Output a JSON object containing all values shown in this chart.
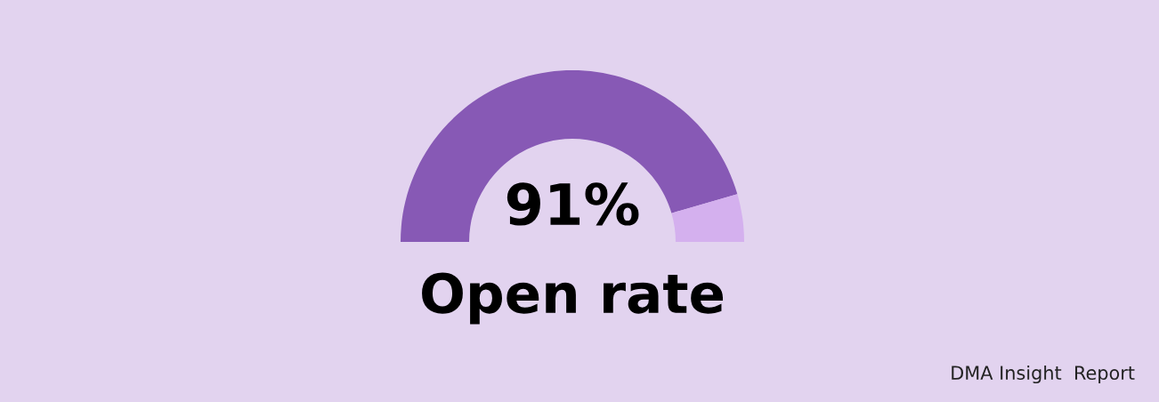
{
  "chart_data": {
    "type": "donut",
    "categories": [
      null,
      null
    ],
    "values": [
      91,
      9
    ],
    "colors": [
      "#8759b5",
      "#d4b0ee"
    ],
    "value_labels": [
      "91%",
      null
    ],
    "title": "Open rate",
    "annotations": [
      "DMA Insight  Report"
    ]
  }
}
